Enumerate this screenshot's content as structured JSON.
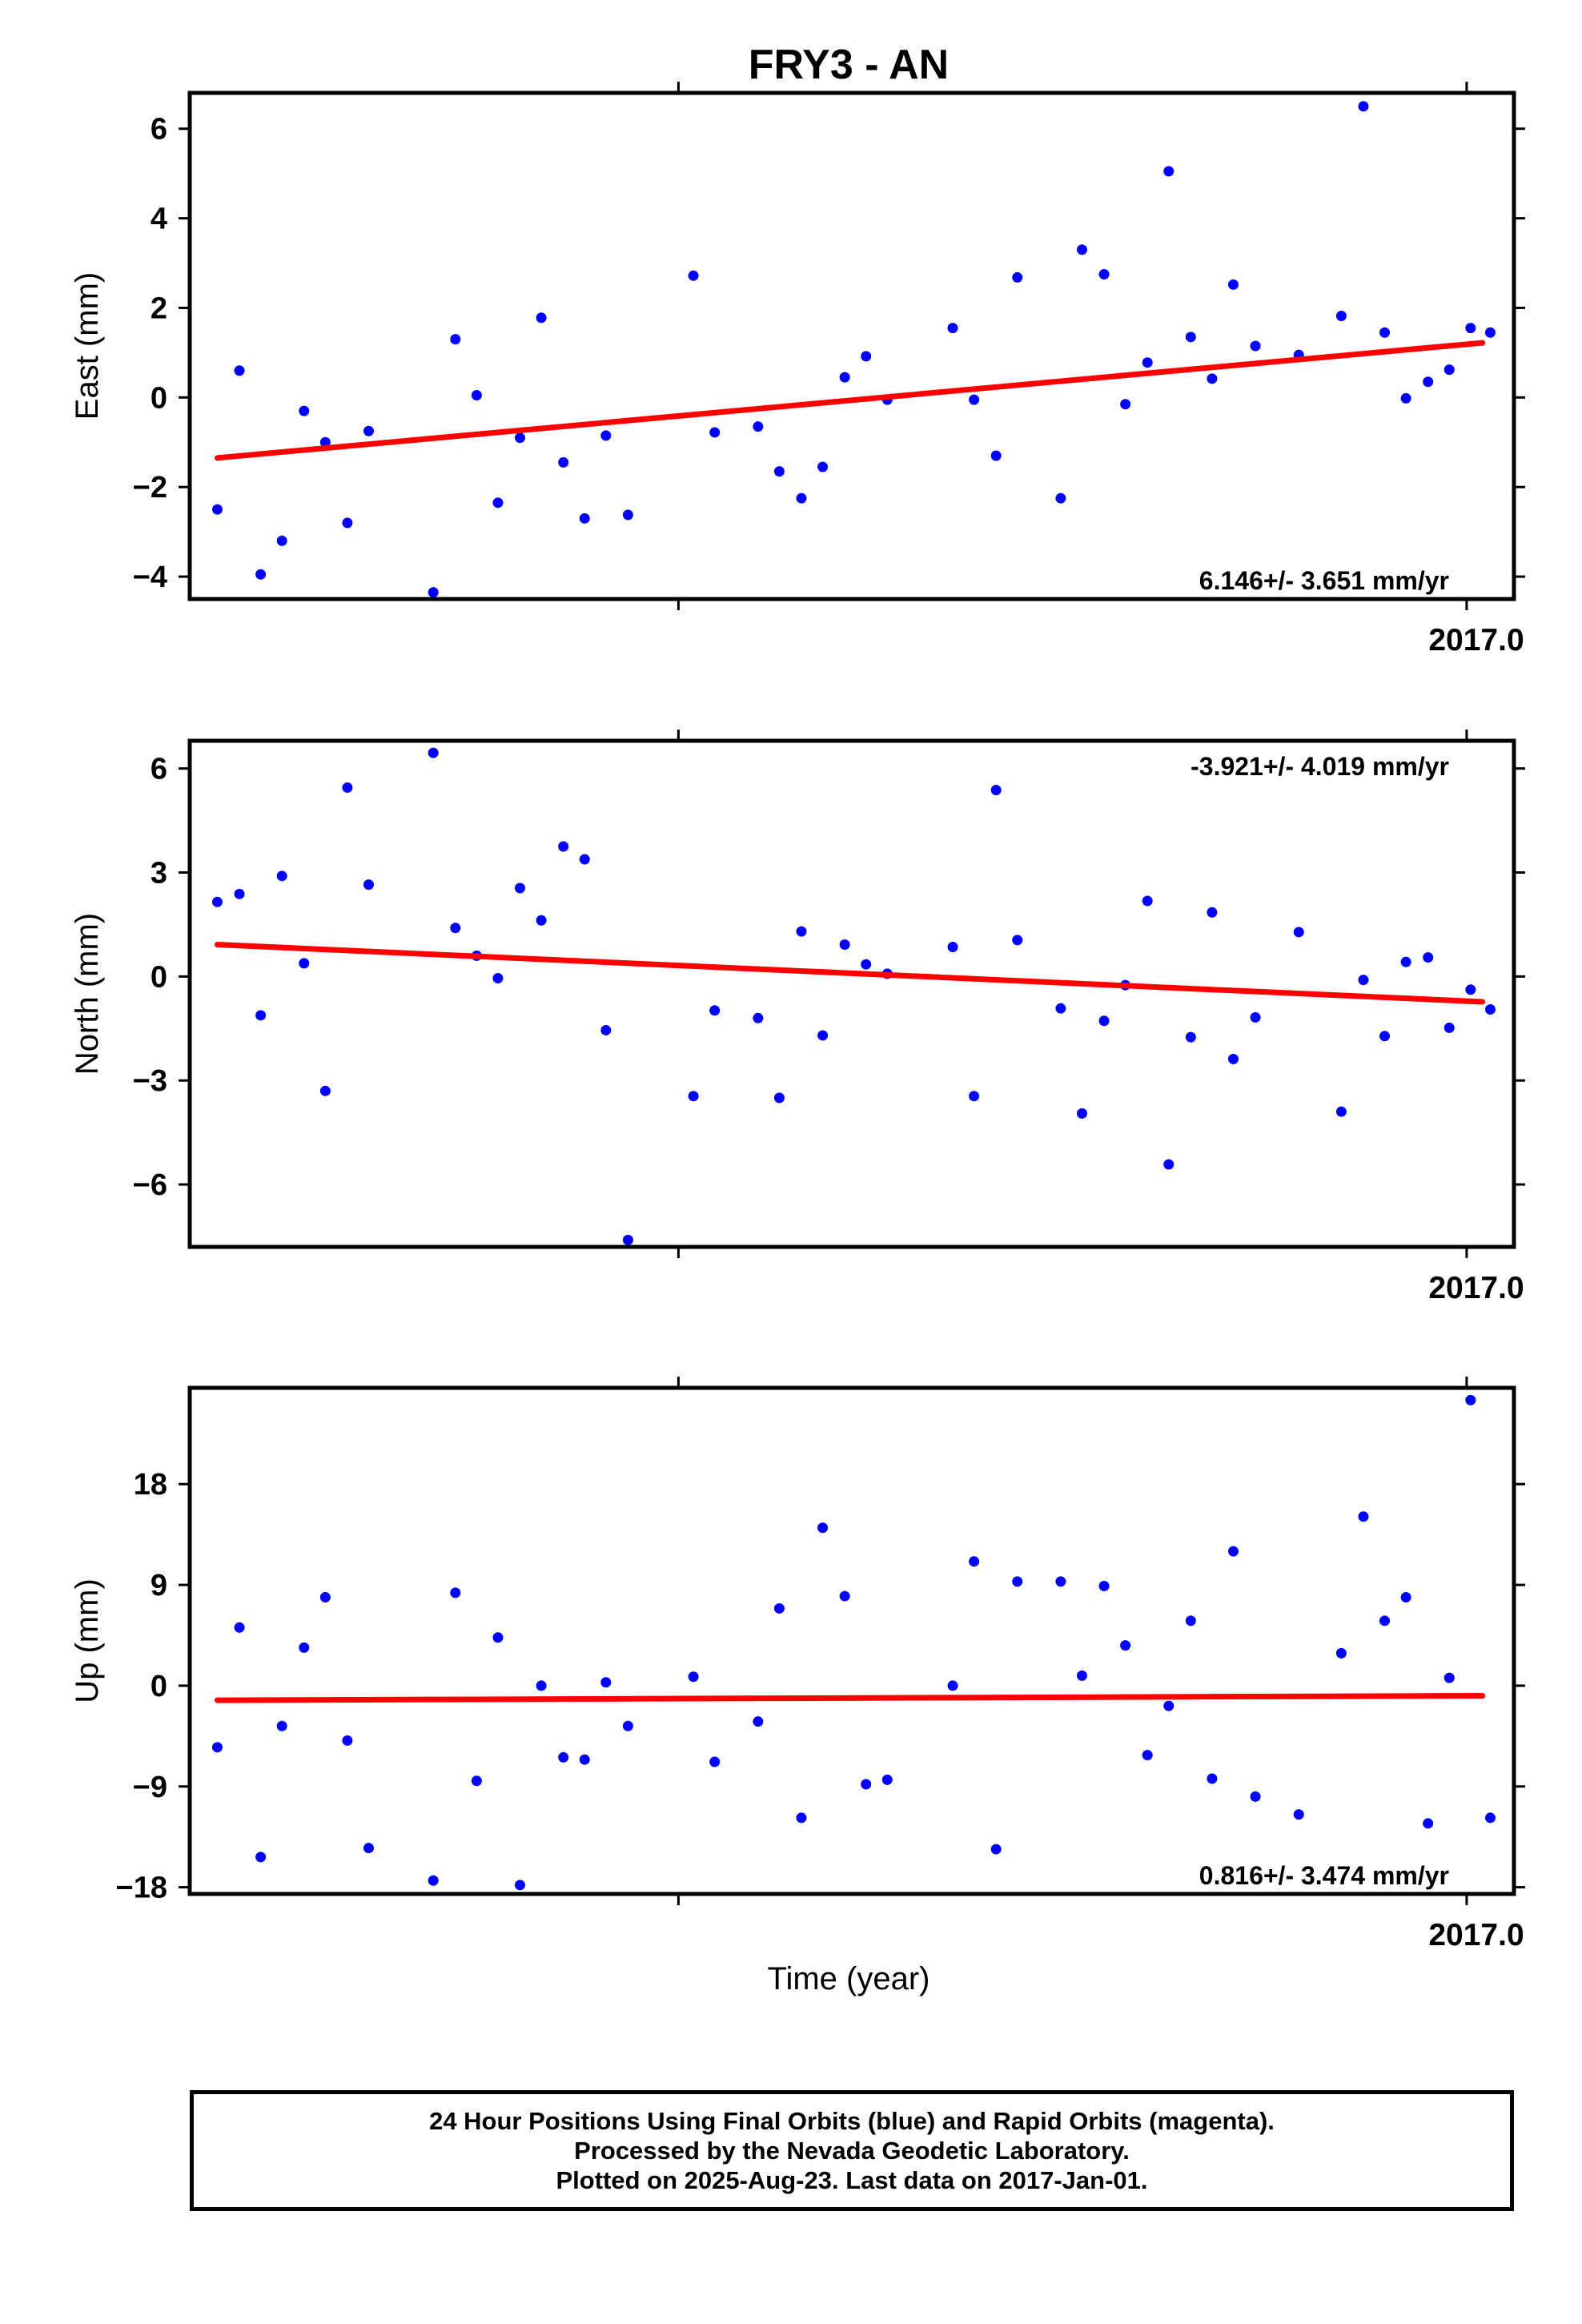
{
  "title": "FRY3 - AN",
  "xlabel": "Time (year)",
  "footer": {
    "line1": "24 Hour Positions Using Final Orbits (blue) and Rapid Orbits (magenta).",
    "line2": "Processed by the Nevada Geodetic Laboratory.",
    "line3": "Plotted on 2025-Aug-23. Last data on 2017-Jan-01."
  },
  "colors": {
    "points": "#0000ff",
    "trend": "#ff0000",
    "frame": "#000000"
  },
  "chart_data": [
    {
      "type": "scatter",
      "panel": "east",
      "ylabel": "East (mm)",
      "ylim": [
        -4.5,
        6.8
      ],
      "yticks": [
        -4,
        -2,
        0,
        2,
        4,
        6
      ],
      "yticklabels": [
        "−4",
        "−2",
        "0",
        "2",
        "4",
        "6"
      ],
      "xlim": [
        2015.38,
        2017.06
      ],
      "xtick_label": "2017.0",
      "xticks": [
        2016.0,
        2017.0
      ],
      "rate_text": "6.146+/- 3.651 mm/yr",
      "rate_position": "bottom-right",
      "trend": {
        "x": [
          2015.415,
          2017.02
        ],
        "y": [
          -1.35,
          1.22
        ]
      },
      "series": {
        "x": [
          2015.415,
          2015.443,
          2015.47,
          2015.497,
          2015.525,
          2015.552,
          2015.58,
          2015.607,
          2015.689,
          2015.717,
          2015.744,
          2015.771,
          2015.799,
          2015.826,
          2015.854,
          2015.881,
          2015.908,
          2015.936,
          2016.019,
          2016.046,
          2016.101,
          2016.128,
          2016.156,
          2016.183,
          2016.211,
          2016.238,
          2016.265,
          2016.348,
          2016.375,
          2016.403,
          2016.43,
          2016.485,
          2016.512,
          2016.54,
          2016.567,
          2016.595,
          2016.622,
          2016.65,
          2016.677,
          2016.704,
          2016.732,
          2016.787,
          2016.841,
          2016.869,
          2016.896,
          2016.923,
          2016.951,
          2016.978,
          2017.005,
          2017.03
        ],
        "y": [
          -2.5,
          0.6,
          -3.95,
          -3.2,
          -0.3,
          -1.0,
          -2.8,
          -0.75,
          -4.35,
          1.3,
          0.05,
          -2.35,
          -0.9,
          1.78,
          -1.45,
          -2.7,
          -0.85,
          -2.62,
          2.72,
          -0.78,
          -0.65,
          -1.65,
          -2.25,
          -1.55,
          0.45,
          0.92,
          -0.05,
          1.55,
          -0.05,
          -1.3,
          2.68,
          -2.25,
          3.3,
          2.75,
          -0.15,
          0.78,
          5.05,
          1.35,
          0.42,
          2.52,
          1.15,
          0.95,
          1.82,
          6.5,
          1.45,
          -0.02,
          0.35,
          0.62,
          1.55,
          1.45
        ]
      }
    },
    {
      "type": "scatter",
      "panel": "north",
      "ylabel": "North (mm)",
      "ylim": [
        -7.8,
        6.8
      ],
      "yticks": [
        -6,
        -3,
        0,
        3,
        6
      ],
      "yticklabels": [
        "−6",
        "−3",
        "0",
        "3",
        "6"
      ],
      "xlim": [
        2015.38,
        2017.06
      ],
      "xtick_label": "2017.0",
      "xticks": [
        2016.0,
        2017.0
      ],
      "rate_text": "-3.921+/- 4.019 mm/yr",
      "rate_position": "top-right",
      "trend": {
        "x": [
          2015.415,
          2017.02
        ],
        "y": [
          0.92,
          -0.73
        ]
      },
      "series": {
        "x": [
          2015.415,
          2015.443,
          2015.47,
          2015.497,
          2015.525,
          2015.552,
          2015.58,
          2015.607,
          2015.689,
          2015.717,
          2015.744,
          2015.771,
          2015.799,
          2015.826,
          2015.854,
          2015.881,
          2015.908,
          2015.936,
          2016.019,
          2016.046,
          2016.101,
          2016.128,
          2016.156,
          2016.183,
          2016.211,
          2016.238,
          2016.265,
          2016.348,
          2016.375,
          2016.403,
          2016.43,
          2016.485,
          2016.512,
          2016.54,
          2016.567,
          2016.595,
          2016.622,
          2016.65,
          2016.677,
          2016.704,
          2016.732,
          2016.787,
          2016.841,
          2016.869,
          2016.896,
          2016.923,
          2016.951,
          2016.978,
          2017.005,
          2017.03
        ],
        "y": [
          2.15,
          2.38,
          -1.12,
          2.9,
          0.38,
          -3.3,
          5.45,
          2.65,
          6.45,
          1.4,
          0.6,
          -0.05,
          2.55,
          1.62,
          3.75,
          3.38,
          -1.55,
          -7.6,
          -3.45,
          -0.98,
          -1.2,
          -3.5,
          1.3,
          -1.7,
          0.92,
          0.35,
          0.08,
          0.85,
          -3.45,
          5.38,
          1.05,
          -0.92,
          -3.95,
          -1.28,
          -0.25,
          2.18,
          -5.42,
          -1.75,
          1.85,
          -2.38,
          -1.18,
          1.28,
          -3.9,
          -0.1,
          -1.72,
          0.42,
          0.55,
          -1.48,
          -0.38,
          -0.95
        ]
      }
    },
    {
      "type": "scatter",
      "panel": "up",
      "ylabel": "Up (mm)",
      "ylim": [
        -18.6,
        26.6
      ],
      "yticks": [
        -18,
        -9,
        0,
        9,
        18
      ],
      "yticklabels": [
        "−18",
        "−9",
        "0",
        "9",
        "18"
      ],
      "xlim": [
        2015.38,
        2017.06
      ],
      "xtick_label": "2017.0",
      "xticks": [
        2016.0,
        2017.0
      ],
      "rate_text": "0.816+/- 3.474 mm/yr",
      "rate_position": "bottom-right",
      "trend": {
        "x": [
          2015.415,
          2017.02
        ],
        "y": [
          -1.3,
          -0.9
        ]
      },
      "series": {
        "x": [
          2015.415,
          2015.443,
          2015.47,
          2015.497,
          2015.525,
          2015.552,
          2015.58,
          2015.607,
          2015.689,
          2015.717,
          2015.744,
          2015.771,
          2015.799,
          2015.826,
          2015.854,
          2015.881,
          2015.908,
          2015.936,
          2016.019,
          2016.046,
          2016.101,
          2016.128,
          2016.156,
          2016.183,
          2016.211,
          2016.238,
          2016.265,
          2016.348,
          2016.375,
          2016.403,
          2016.43,
          2016.485,
          2016.512,
          2016.54,
          2016.567,
          2016.595,
          2016.622,
          2016.65,
          2016.677,
          2016.704,
          2016.732,
          2016.787,
          2016.841,
          2016.869,
          2016.896,
          2016.923,
          2016.951,
          2016.978,
          2017.005,
          2017.03
        ],
        "y": [
          -5.5,
          5.2,
          -15.3,
          -3.6,
          3.4,
          7.9,
          -4.9,
          -14.5,
          -17.4,
          8.3,
          -8.5,
          4.3,
          -17.8,
          0.0,
          -6.4,
          -6.6,
          0.3,
          -3.6,
          0.8,
          -6.8,
          -3.2,
          6.9,
          -11.8,
          14.1,
          8.0,
          -8.8,
          -8.4,
          0.0,
          11.1,
          -14.6,
          9.3,
          9.3,
          0.9,
          8.9,
          3.6,
          -6.2,
          -1.8,
          5.8,
          -8.3,
          12.0,
          -9.9,
          -11.5,
          2.9,
          15.1,
          5.8,
          7.9,
          -12.3,
          0.7,
          25.5,
          -11.8
        ]
      }
    }
  ]
}
